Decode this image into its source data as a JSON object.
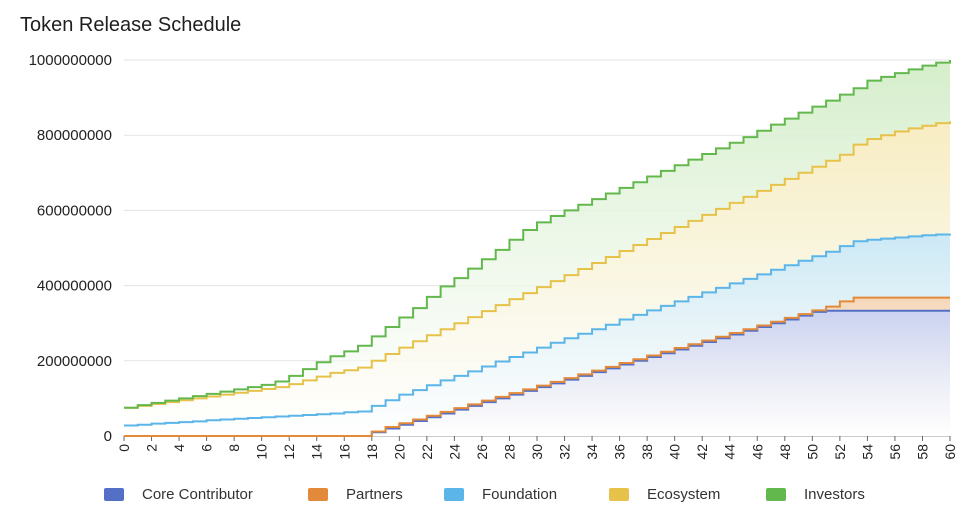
{
  "chart_data": {
    "type": "area",
    "title": "Token Release Schedule",
    "xlabel": "",
    "ylabel": "",
    "stacked": true,
    "step": true,
    "x": [
      0,
      1,
      2,
      3,
      4,
      5,
      6,
      7,
      8,
      9,
      10,
      11,
      12,
      13,
      14,
      15,
      16,
      17,
      18,
      19,
      20,
      21,
      22,
      23,
      24,
      25,
      26,
      27,
      28,
      29,
      30,
      31,
      32,
      33,
      34,
      35,
      36,
      37,
      38,
      39,
      40,
      41,
      42,
      43,
      44,
      45,
      46,
      47,
      48,
      49,
      50,
      51,
      52,
      53,
      54,
      55,
      56,
      57,
      58,
      59,
      60
    ],
    "x_ticks": [
      0,
      2,
      4,
      6,
      8,
      10,
      12,
      14,
      16,
      18,
      20,
      22,
      24,
      26,
      28,
      30,
      32,
      34,
      36,
      38,
      40,
      42,
      44,
      46,
      48,
      50,
      52,
      54,
      56,
      58,
      60
    ],
    "ylim": [
      0,
      1000000000
    ],
    "y_ticks": [
      0,
      200000000,
      400000000,
      600000000,
      800000000,
      1000000000
    ],
    "y_tick_labels": [
      "0",
      "200000000",
      "400000000",
      "600000000",
      "800000000",
      "1000000000"
    ],
    "x_tick_labels": [
      "0",
      "2",
      "4",
      "6",
      "8",
      "10",
      "12",
      "14",
      "16",
      "18",
      "20",
      "22",
      "24",
      "26",
      "28",
      "30",
      "32",
      "34",
      "36",
      "38",
      "40",
      "42",
      "44",
      "46",
      "48",
      "50",
      "52",
      "54",
      "56",
      "58",
      "60"
    ],
    "grid": true,
    "legend_position": "bottom",
    "cumulative_totals": {
      "core_contributor": [
        0,
        0,
        0,
        0,
        0,
        0,
        0,
        0,
        0,
        0,
        0,
        0,
        0,
        0,
        0,
        0,
        0,
        0,
        10000000,
        20000000,
        30000000,
        40000000,
        50000000,
        60000000,
        70000000,
        80000000,
        90000000,
        100000000,
        110000000,
        120000000,
        130000000,
        140000000,
        150000000,
        160000000,
        170000000,
        180000000,
        190000000,
        200000000,
        210000000,
        220000000,
        230000000,
        240000000,
        250000000,
        260000000,
        270000000,
        280000000,
        290000000,
        300000000,
        310000000,
        320000000,
        330000000,
        333000000,
        333000000,
        333000000,
        333000000,
        333000000,
        333000000,
        333000000,
        333000000,
        333000000,
        333000000
      ],
      "partners": [
        0,
        0,
        0,
        0,
        0,
        0,
        0,
        0,
        0,
        0,
        0,
        0,
        0,
        0,
        0,
        0,
        0,
        0,
        12000000,
        24000000,
        34000000,
        44000000,
        54000000,
        64000000,
        74000000,
        84000000,
        94000000,
        104000000,
        114000000,
        124000000,
        134000000,
        144000000,
        154000000,
        164000000,
        174000000,
        184000000,
        194000000,
        204000000,
        214000000,
        224000000,
        234000000,
        244000000,
        254000000,
        264000000,
        274000000,
        284000000,
        294000000,
        304000000,
        314000000,
        324000000,
        334000000,
        344000000,
        358000000,
        368000000,
        368000000,
        368000000,
        368000000,
        368000000,
        368000000,
        368000000,
        368000000
      ],
      "foundation": [
        28000000,
        30000000,
        33000000,
        35000000,
        37000000,
        39000000,
        42000000,
        44000000,
        46000000,
        48000000,
        50000000,
        52000000,
        54000000,
        56000000,
        58000000,
        60000000,
        63000000,
        65000000,
        80000000,
        95000000,
        110000000,
        122000000,
        135000000,
        148000000,
        160000000,
        172000000,
        185000000,
        198000000,
        210000000,
        222000000,
        235000000,
        248000000,
        260000000,
        272000000,
        284000000,
        296000000,
        310000000,
        322000000,
        334000000,
        346000000,
        358000000,
        370000000,
        382000000,
        394000000,
        406000000,
        418000000,
        430000000,
        442000000,
        454000000,
        466000000,
        478000000,
        490000000,
        505000000,
        518000000,
        522000000,
        525000000,
        528000000,
        531000000,
        534000000,
        536000000,
        538000000
      ],
      "ecosystem": [
        75000000,
        80000000,
        85000000,
        90000000,
        95000000,
        100000000,
        105000000,
        110000000,
        115000000,
        120000000,
        125000000,
        130000000,
        138000000,
        148000000,
        158000000,
        168000000,
        175000000,
        182000000,
        200000000,
        218000000,
        235000000,
        252000000,
        268000000,
        284000000,
        300000000,
        316000000,
        332000000,
        348000000,
        364000000,
        380000000,
        396000000,
        412000000,
        428000000,
        444000000,
        460000000,
        476000000,
        492000000,
        508000000,
        524000000,
        540000000,
        556000000,
        572000000,
        588000000,
        604000000,
        620000000,
        636000000,
        652000000,
        668000000,
        684000000,
        700000000,
        716000000,
        732000000,
        748000000,
        775000000,
        790000000,
        800000000,
        810000000,
        818000000,
        825000000,
        832000000,
        837000000
      ],
      "investors": [
        75000000,
        82000000,
        88000000,
        94000000,
        100000000,
        106000000,
        112000000,
        118000000,
        124000000,
        130000000,
        136000000,
        145000000,
        160000000,
        178000000,
        196000000,
        212000000,
        225000000,
        240000000,
        265000000,
        290000000,
        315000000,
        340000000,
        370000000,
        398000000,
        420000000,
        445000000,
        470000000,
        495000000,
        522000000,
        548000000,
        568000000,
        585000000,
        600000000,
        615000000,
        630000000,
        645000000,
        660000000,
        675000000,
        690000000,
        705000000,
        720000000,
        735000000,
        750000000,
        765000000,
        780000000,
        795000000,
        812000000,
        828000000,
        844000000,
        860000000,
        876000000,
        892000000,
        908000000,
        925000000,
        945000000,
        955000000,
        965000000,
        975000000,
        985000000,
        993000000,
        1000000000
      ]
    },
    "series": [
      {
        "name": "Core Contributor",
        "key": "core_contributor",
        "color": "#5470c6",
        "fill": "#c7d2f5"
      },
      {
        "name": "Partners",
        "key": "partners",
        "color": "#e3893a",
        "fill": "#f6d6b6"
      },
      {
        "name": "Foundation",
        "key": "foundation",
        "color": "#5bb5e8",
        "fill": "#c9e8f8"
      },
      {
        "name": "Ecosystem",
        "key": "ecosystem",
        "color": "#e7c24a",
        "fill": "#f9ecc1"
      },
      {
        "name": "Investors",
        "key": "investors",
        "color": "#63b84d",
        "fill": "#d3edc8"
      }
    ]
  }
}
